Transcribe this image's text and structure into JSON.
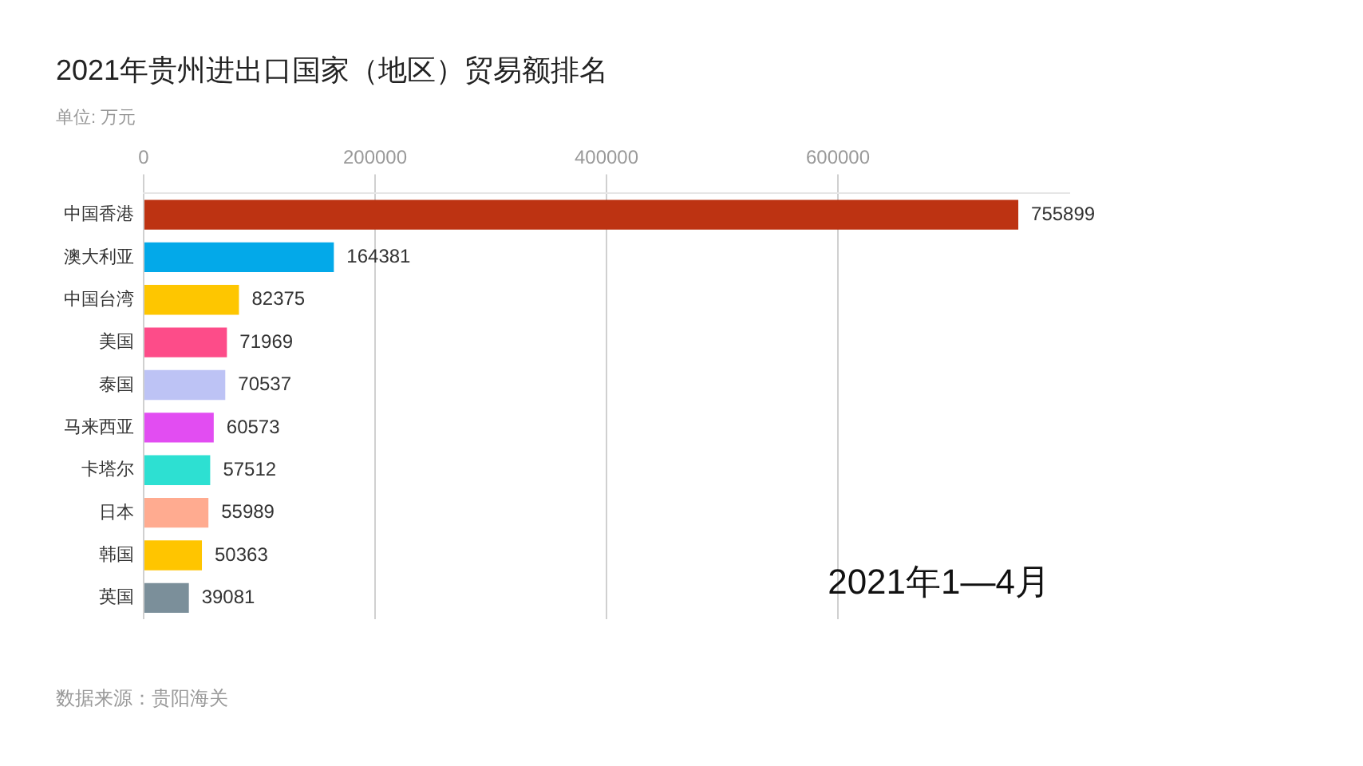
{
  "chart_data": {
    "type": "bar",
    "orientation": "horizontal",
    "title": "2021年贵州进出口国家（地区）贸易额排名",
    "subtitle": "单位: 万元",
    "categories": [
      "中国香港",
      "澳大利亚",
      "中国台湾",
      "美国",
      "泰国",
      "马来西亚",
      "卡塔尔",
      "日本",
      "韩国",
      "英国"
    ],
    "values": [
      755899,
      164381,
      82375,
      71969,
      70537,
      60573,
      57512,
      55989,
      50363,
      39081
    ],
    "colors": [
      "#bd3312",
      "#03a9e9",
      "#fec600",
      "#fd4c89",
      "#bdc3f5",
      "#e24df2",
      "#2de0d2",
      "#ffab90",
      "#ffc500",
      "#7b8f9a"
    ],
    "xlim": [
      0,
      800000
    ],
    "xticks": [
      0,
      200000,
      400000,
      600000
    ],
    "grid": "x",
    "data_labels": true,
    "annotations": [
      "2021年1—4月",
      "数据来源：贵阳海关"
    ]
  }
}
